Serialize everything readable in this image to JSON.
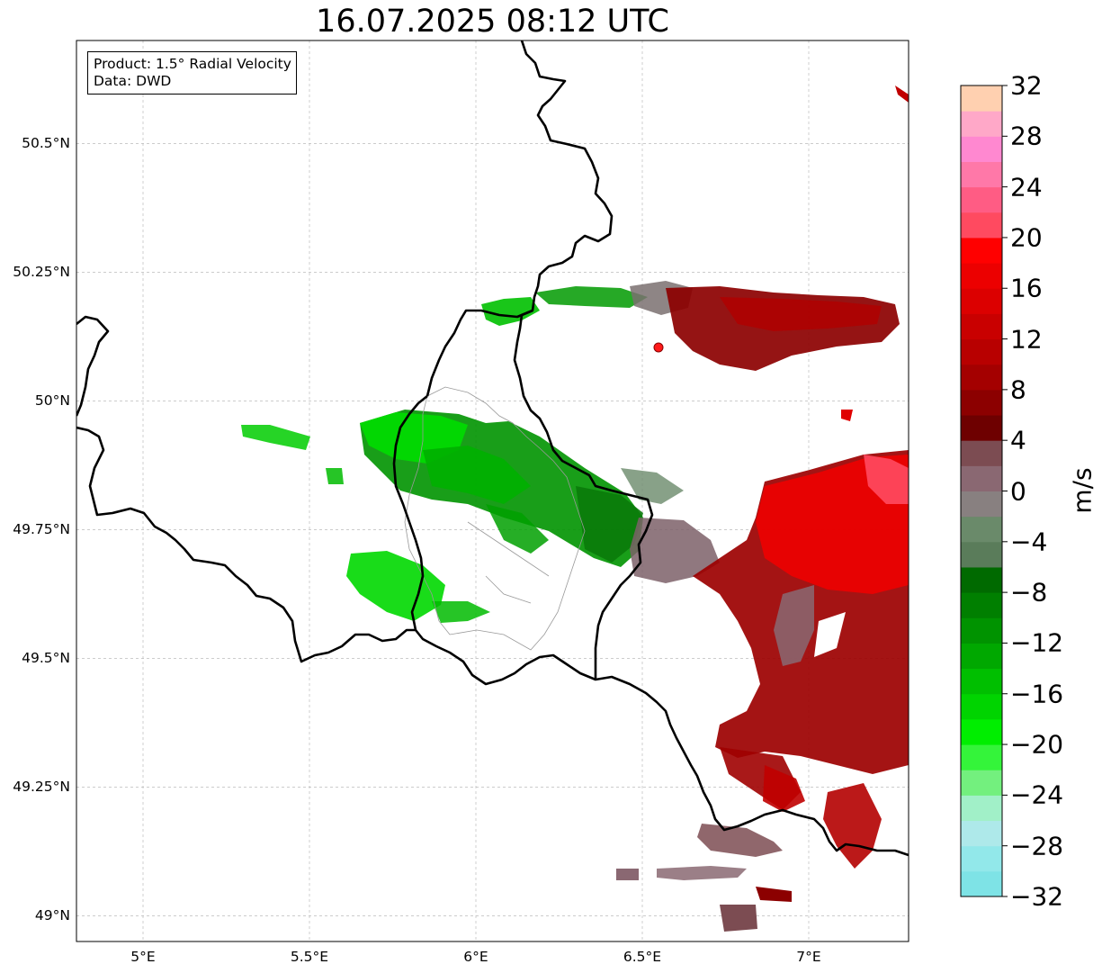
{
  "title": "16.07.2025 08:12 UTC",
  "info_box": {
    "product": "Product: 1.5° Radial Velocity",
    "source": "Data: DWD"
  },
  "map": {
    "lon_range": [
      4.8,
      7.3
    ],
    "lat_range": [
      48.95,
      50.7
    ],
    "gridlines": true,
    "radar_site_marker": {
      "lon": 6.55,
      "lat": 50.11,
      "color": "#ff1a1a"
    },
    "lon_ticks": [
      {
        "value": 5.0,
        "label": "5°E"
      },
      {
        "value": 5.5,
        "label": "5.5°E"
      },
      {
        "value": 6.0,
        "label": "6°E"
      },
      {
        "value": 6.5,
        "label": "6.5°E"
      },
      {
        "value": 7.0,
        "label": "7°E"
      }
    ],
    "lat_ticks": [
      {
        "value": 49.0,
        "label": "49°N"
      },
      {
        "value": 49.25,
        "label": "49.25°N"
      },
      {
        "value": 49.5,
        "label": "49.5°N"
      },
      {
        "value": 49.75,
        "label": "49.75°N"
      },
      {
        "value": 50.0,
        "label": "50°N"
      },
      {
        "value": 50.25,
        "label": "50.25°N"
      },
      {
        "value": 50.5,
        "label": "50.5°N"
      }
    ]
  },
  "colorbar": {
    "unit": "m/s",
    "min": -32,
    "max": 32,
    "tick_labels": [
      "32",
      "28",
      "24",
      "20",
      "16",
      "12",
      "8",
      "4",
      "0",
      "−4",
      "−8",
      "−12",
      "−16",
      "−20",
      "−24",
      "−28",
      "−32"
    ],
    "colors_bottom_to_top": [
      "#7ee3e6",
      "#92e8ea",
      "#aee9ea",
      "#a1f0c8",
      "#73f07e",
      "#34f43a",
      "#00ee00",
      "#00d400",
      "#00bf00",
      "#00a800",
      "#009300",
      "#007f00",
      "#006a00",
      "#5a7c5a",
      "#6a8a6a",
      "#888080",
      "#8a6872",
      "#7c4c52",
      "#6e0000",
      "#8c0000",
      "#a40000",
      "#b80000",
      "#c90000",
      "#dc0000",
      "#ec0000",
      "#ff0000",
      "#ff4a60",
      "#ff5c84",
      "#ff78a8",
      "#ff88d0",
      "#ffa8c8",
      "#ffd0b0"
    ]
  }
}
